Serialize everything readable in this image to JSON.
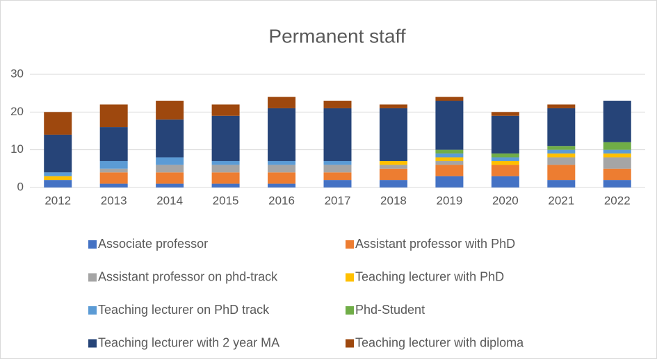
{
  "chart_data": {
    "type": "stacked_bar",
    "title": "Permanent staff",
    "categories": [
      "2012",
      "2013",
      "2014",
      "2015",
      "2016",
      "2017",
      "2018",
      "2019",
      "2020",
      "2021",
      "2022"
    ],
    "series": [
      {
        "name": "Associate professor",
        "color": "#4472c4",
        "values": [
          2,
          1,
          1,
          1,
          1,
          2,
          2,
          3,
          3,
          2,
          2
        ]
      },
      {
        "name": "Assistant professor with PhD",
        "color": "#ed7d31",
        "values": [
          0,
          3,
          3,
          3,
          3,
          2,
          3,
          3,
          3,
          4,
          3
        ]
      },
      {
        "name": "Assistant professor on phd-track",
        "color": "#a5a5a5",
        "values": [
          0,
          1,
          2,
          2,
          2,
          2,
          1,
          1,
          0,
          2,
          3
        ]
      },
      {
        "name": "Teaching lecturer with PhD",
        "color": "#ffc000",
        "values": [
          1,
          0,
          0,
          0,
          0,
          0,
          1,
          1,
          1,
          1,
          1
        ]
      },
      {
        "name": "Teaching lecturer on PhD track",
        "color": "#5b9bd5",
        "values": [
          1,
          2,
          2,
          1,
          1,
          1,
          0,
          1,
          1,
          1,
          1
        ]
      },
      {
        "name": "Phd-Student",
        "color": "#70ad47",
        "values": [
          0,
          0,
          0,
          0,
          0,
          0,
          0,
          1,
          1,
          1,
          2
        ]
      },
      {
        "name": "Teaching lecturer with 2 year MA",
        "color": "#264478",
        "values": [
          10,
          9,
          10,
          12,
          14,
          14,
          14,
          13,
          10,
          10,
          11
        ]
      },
      {
        "name": "Teaching lecturer with diploma",
        "color": "#9e480e",
        "values": [
          6,
          6,
          5,
          3,
          3,
          2,
          1,
          1,
          1,
          1,
          0
        ]
      }
    ],
    "ylim": [
      0,
      30
    ],
    "yticks": [
      0,
      10,
      20,
      30
    ],
    "grid": true
  }
}
